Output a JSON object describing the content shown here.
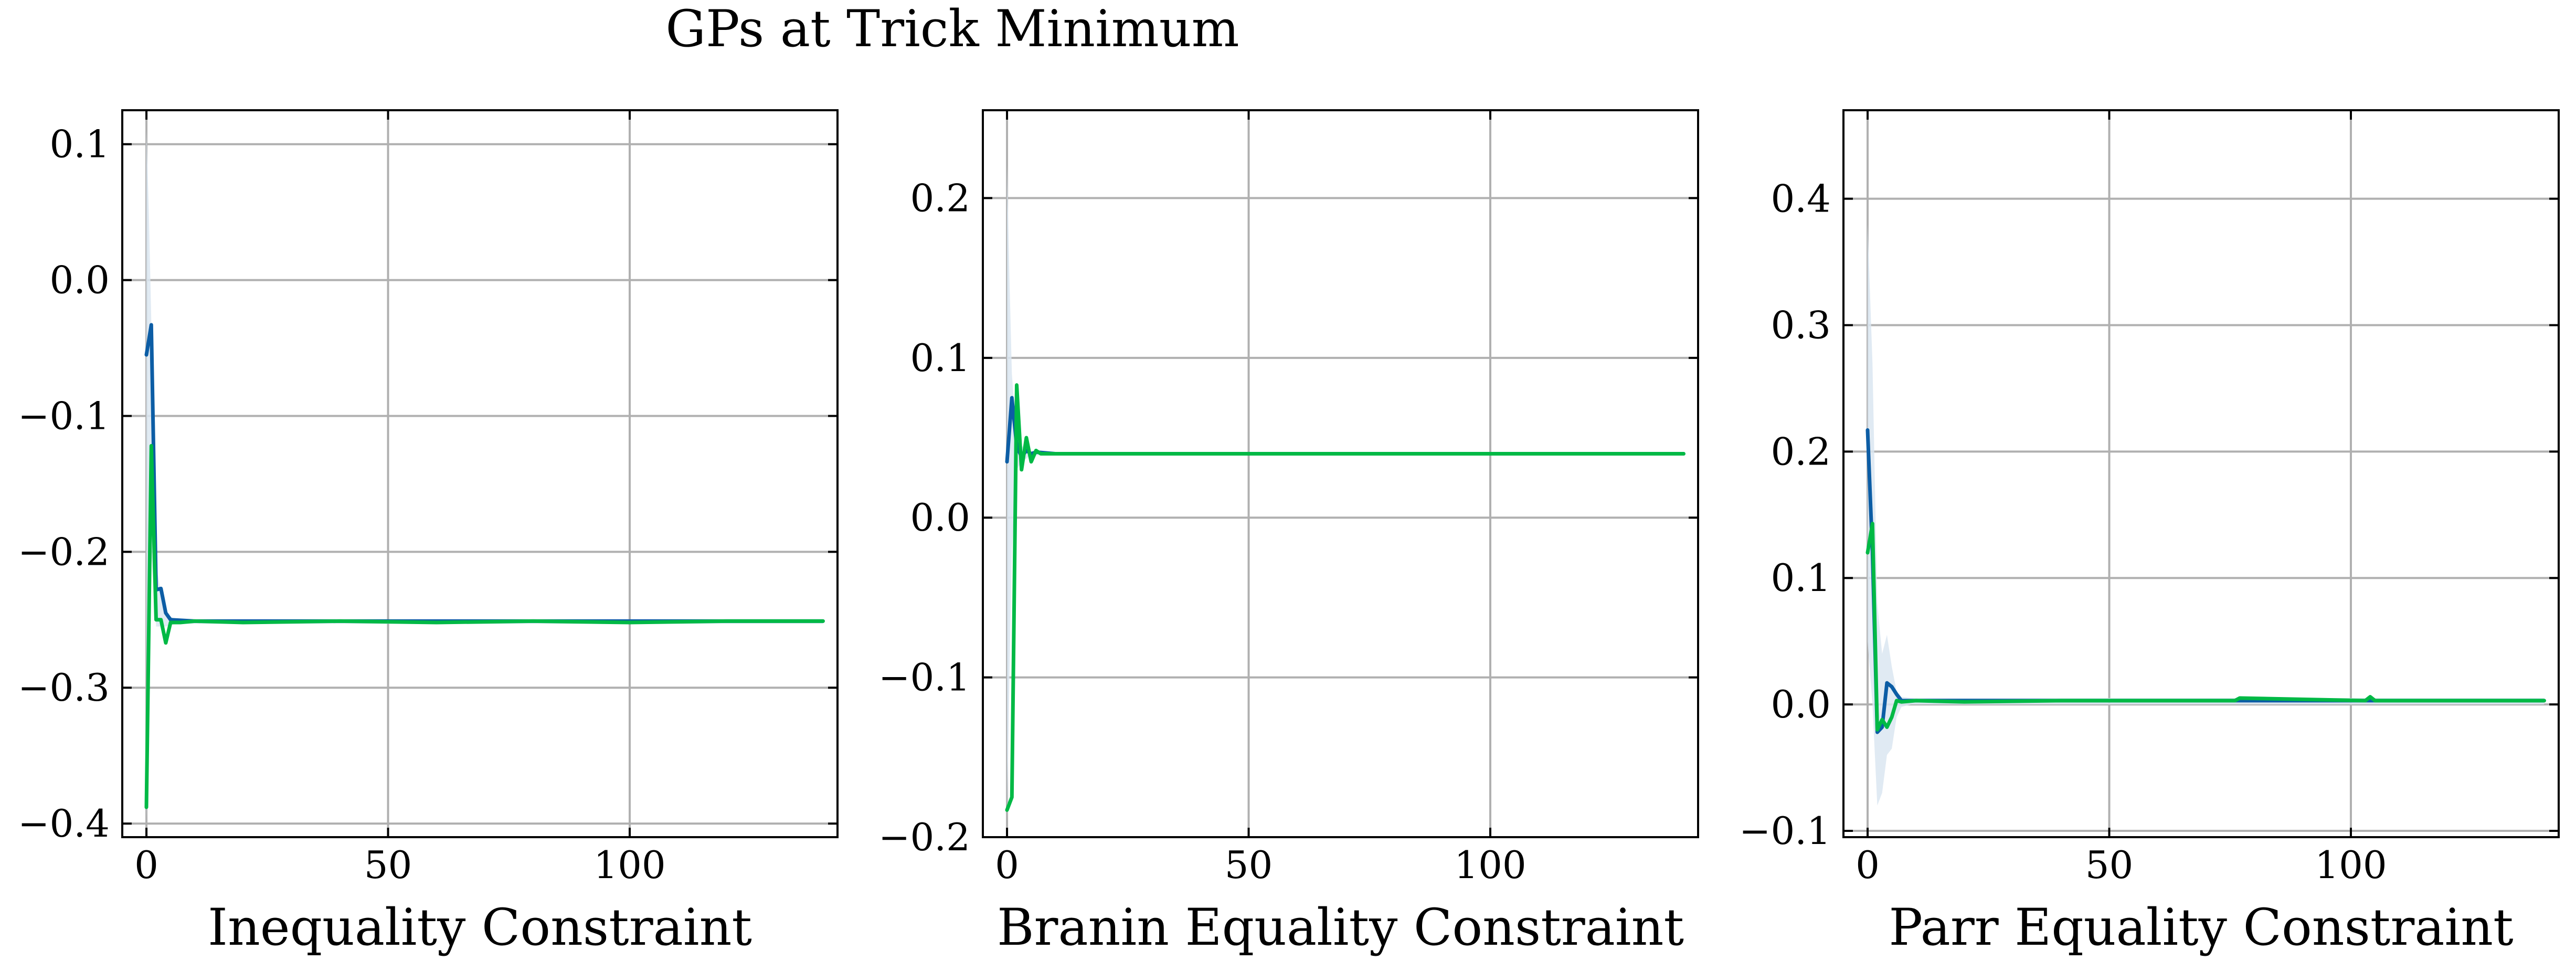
{
  "title": "GPs at Trick Minimum",
  "colors": {
    "series_blue": "#0C5DA5",
    "series_green": "#00B945",
    "band": "#dbe6f1",
    "grid": "#b0b0b0"
  },
  "chart_data": [
    {
      "type": "line",
      "xlabel": "Inequality Constraint",
      "ylabel": "",
      "xlim": [
        -5,
        143
      ],
      "ylim": [
        -0.41,
        0.125
      ],
      "xticks": [
        0,
        50,
        100
      ],
      "yticks": [
        -0.4,
        -0.3,
        -0.2,
        -0.1,
        0.0,
        0.1
      ],
      "ytick_labels": [
        "−0.4",
        "−0.3",
        "−0.2",
        "−0.1",
        "0.0",
        "0.1"
      ],
      "grid": true,
      "band": {
        "x": [
          0,
          0.5,
          1,
          2,
          3,
          4,
          6,
          140
        ],
        "upper": [
          0.11,
          0.05,
          -0.03,
          -0.21,
          -0.23,
          -0.245,
          -0.25,
          -0.25
        ],
        "lower": [
          -0.4,
          -0.28,
          -0.2,
          -0.255,
          -0.255,
          -0.255,
          -0.253,
          -0.253
        ]
      },
      "series": [
        {
          "color_key": "series_blue",
          "x": [
            0,
            1,
            2,
            3,
            4,
            5,
            10,
            30,
            60,
            100,
            140
          ],
          "y": [
            -0.055,
            -0.033,
            -0.228,
            -0.227,
            -0.245,
            -0.25,
            -0.251,
            -0.251,
            -0.251,
            -0.251,
            -0.251
          ]
        },
        {
          "color_key": "series_green",
          "x": [
            0,
            1,
            2,
            3,
            4,
            5,
            7,
            10,
            20,
            40,
            60,
            80,
            100,
            120,
            140
          ],
          "y": [
            -0.388,
            -0.122,
            -0.25,
            -0.25,
            -0.267,
            -0.252,
            -0.252,
            -0.251,
            -0.252,
            -0.251,
            -0.252,
            -0.251,
            -0.252,
            -0.251,
            -0.251
          ]
        }
      ]
    },
    {
      "type": "line",
      "xlabel": "Branin Equality Constraint",
      "ylabel": "",
      "xlim": [
        -5,
        143
      ],
      "ylim": [
        -0.2,
        0.255
      ],
      "xticks": [
        0,
        50,
        100
      ],
      "yticks": [
        -0.2,
        -0.1,
        0.0,
        0.1,
        0.2
      ],
      "ytick_labels": [
        "−0.2",
        "−0.1",
        "0.0",
        "0.1",
        "0.2"
      ],
      "grid": true,
      "band": {
        "x": [
          0,
          0.5,
          1,
          2,
          3,
          5,
          140
        ],
        "upper": [
          0.22,
          0.15,
          0.09,
          0.05,
          0.045,
          0.041,
          0.041
        ],
        "lower": [
          -0.19,
          -0.1,
          -0.02,
          0.03,
          0.035,
          0.039,
          0.039
        ]
      },
      "series": [
        {
          "color_key": "series_blue",
          "x": [
            0,
            1,
            2,
            3,
            4,
            5,
            6,
            10,
            140
          ],
          "y": [
            0.035,
            0.075,
            0.045,
            0.038,
            0.042,
            0.04,
            0.041,
            0.04,
            0.04
          ]
        },
        {
          "color_key": "series_green",
          "x": [
            0,
            1,
            2,
            3,
            4,
            5,
            6,
            7,
            10,
            140
          ],
          "y": [
            -0.183,
            -0.175,
            0.083,
            0.03,
            0.05,
            0.035,
            0.042,
            0.04,
            0.04,
            0.04
          ]
        }
      ]
    },
    {
      "type": "line",
      "xlabel": "Parr Equality Constraint",
      "ylabel": "",
      "xlim": [
        -5,
        143
      ],
      "ylim": [
        -0.105,
        0.47
      ],
      "xticks": [
        0,
        50,
        100
      ],
      "yticks": [
        -0.1,
        0.0,
        0.1,
        0.2,
        0.3,
        0.4
      ],
      "ytick_labels": [
        "−0.1",
        "0.0",
        "0.1",
        "0.2",
        "0.3",
        "0.4"
      ],
      "grid": true,
      "band": {
        "x": [
          0,
          1,
          2,
          3,
          4,
          5,
          6,
          7,
          9,
          140
        ],
        "upper": [
          0.38,
          0.27,
          0.08,
          0.04,
          0.055,
          0.03,
          0.01,
          0.006,
          0.005,
          0.005
        ],
        "lower": [
          0.05,
          0.0,
          -0.08,
          -0.07,
          -0.04,
          -0.035,
          -0.01,
          -0.002,
          0.0,
          0.0
        ]
      },
      "series": [
        {
          "color_key": "series_blue",
          "x": [
            0,
            1,
            2,
            3,
            4,
            5,
            6,
            7,
            10,
            50,
            104,
            140
          ],
          "y": [
            0.217,
            0.12,
            -0.022,
            -0.018,
            0.017,
            0.014,
            0.008,
            0.003,
            0.003,
            0.003,
            0.003,
            0.003
          ]
        },
        {
          "color_key": "series_green",
          "x": [
            0,
            1,
            2,
            3,
            4,
            5,
            6,
            7,
            10,
            20,
            40,
            76,
            77,
            103,
            104,
            105,
            140
          ],
          "y": [
            0.12,
            0.143,
            -0.02,
            -0.012,
            -0.018,
            -0.01,
            0.003,
            0.002,
            0.003,
            0.002,
            0.003,
            0.003,
            0.005,
            0.003,
            0.006,
            0.003,
            0.003
          ]
        }
      ]
    }
  ]
}
